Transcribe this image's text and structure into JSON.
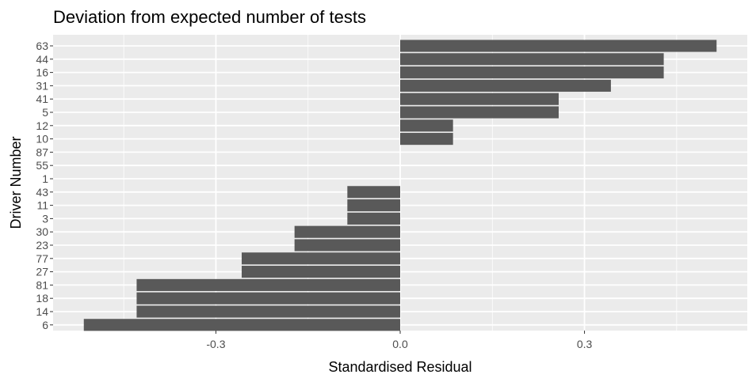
{
  "chart_data": {
    "type": "bar",
    "orientation": "horizontal",
    "title": "Deviation from expected number of tests",
    "xlabel": "Standardised Residual",
    "ylabel": "Driver Number",
    "categories": [
      "63",
      "44",
      "16",
      "31",
      "41",
      "5",
      "12",
      "10",
      "87",
      "55",
      "1",
      "43",
      "11",
      "3",
      "30",
      "23",
      "77",
      "27",
      "81",
      "18",
      "14",
      "6"
    ],
    "values": [
      0.515,
      0.429,
      0.429,
      0.343,
      0.258,
      0.258,
      0.086,
      0.086,
      0,
      0,
      0,
      -0.086,
      -0.086,
      -0.086,
      -0.172,
      -0.172,
      -0.258,
      -0.258,
      -0.429,
      -0.429,
      -0.429,
      -0.515
    ],
    "xlim": [
      -0.565,
      0.565
    ],
    "x_ticks": [
      -0.3,
      0.0,
      0.3
    ],
    "x_tick_labels": [
      "-0.3",
      "0.0",
      "0.3"
    ],
    "grid": true,
    "colors": {
      "panel": "#ebebeb",
      "bar": "#595959",
      "grid": "#ffffff",
      "tick_text": "#4d4d4d"
    }
  }
}
